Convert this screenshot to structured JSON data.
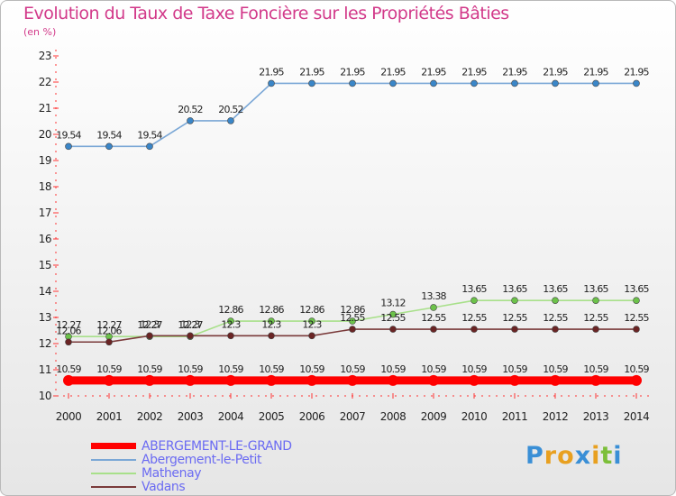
{
  "header": {
    "title": "Evolution du Taux de Taxe Foncière sur les Propriétés Bâties",
    "subtitle": "(en %)"
  },
  "logo": {
    "letters": [
      "P",
      "r",
      "o",
      "x",
      "i",
      "t",
      "i"
    ],
    "colors": [
      "#3a8fd6",
      "#e8a020",
      "#e8a020",
      "#3a8fd6",
      "#e8a020",
      "#7cbf3a",
      "#3a8fd6"
    ]
  },
  "chart_data": {
    "type": "line",
    "title": "Evolution du Taux de Taxe Foncière sur les Propriétés Bâties",
    "ylabel": "(en %)",
    "xlabel": "",
    "x": [
      "2000",
      "2001",
      "2002",
      "2003",
      "2004",
      "2005",
      "2006",
      "2007",
      "2008",
      "2009",
      "2010",
      "2011",
      "2012",
      "2013",
      "2014"
    ],
    "ylim": [
      10,
      23
    ],
    "yticks": [
      10,
      11,
      12,
      13,
      14,
      15,
      16,
      17,
      18,
      19,
      20,
      21,
      22,
      23
    ],
    "grid": false,
    "legend_position": "bottom-left",
    "series": [
      {
        "name": "ABERGEMENT-LE-GRAND",
        "color": "#ff0000",
        "width": "thick",
        "values": [
          10.59,
          10.59,
          10.59,
          10.59,
          10.59,
          10.59,
          10.59,
          10.59,
          10.59,
          10.59,
          10.59,
          10.59,
          10.59,
          10.59,
          10.59
        ],
        "labels": [
          "10.59",
          "10.59",
          "10.59",
          "10.59",
          "10.59",
          "10.59",
          "10.59",
          "10.59",
          "10.59",
          "10.59",
          "10.59",
          "10.59",
          "10.59",
          "10.59",
          "10.59"
        ]
      },
      {
        "name": "Abergement-le-Petit",
        "color": "#7aa7d6",
        "marker": "#3a86c8",
        "width": "thin",
        "values": [
          19.54,
          19.54,
          19.54,
          20.52,
          20.52,
          21.95,
          21.95,
          21.95,
          21.95,
          21.95,
          21.95,
          21.95,
          21.95,
          21.95,
          21.95
        ],
        "labels": [
          "19.54",
          "19.54",
          "19.54",
          "20.52",
          "20.52",
          "21.95",
          "21.95",
          "21.95",
          "21.95",
          "21.95",
          "21.95",
          "21.95",
          "21.95",
          "21.95",
          "21.95"
        ]
      },
      {
        "name": "Mathenay",
        "color": "#a8e08a",
        "marker": "#6cc24a",
        "width": "thin",
        "values": [
          12.27,
          12.27,
          12.27,
          12.27,
          12.86,
          12.86,
          12.86,
          12.86,
          13.12,
          13.38,
          13.65,
          13.65,
          13.65,
          13.65,
          13.65
        ],
        "labels": [
          "12.27",
          "12.27",
          "12.27",
          "12.27",
          "12.86",
          "12.86",
          "12.86",
          "12.86",
          "13.12",
          "13.38",
          "13.65",
          "13.65",
          "13.65",
          "13.65",
          "13.65"
        ]
      },
      {
        "name": "Vadans",
        "color": "#7a3a3a",
        "marker": "#6a2424",
        "width": "thin",
        "values": [
          12.06,
          12.06,
          12.3,
          12.3,
          12.3,
          12.3,
          12.3,
          12.55,
          12.55,
          12.55,
          12.55,
          12.55,
          12.55,
          12.55,
          12.55
        ],
        "labels": [
          "12.06",
          "12.06",
          "12.3",
          "12.3",
          "12.3",
          "12.3",
          "12.3",
          "12.55",
          "12.55",
          "12.55",
          "12.55",
          "12.55",
          "12.55",
          "12.55",
          "12.55"
        ]
      }
    ]
  }
}
